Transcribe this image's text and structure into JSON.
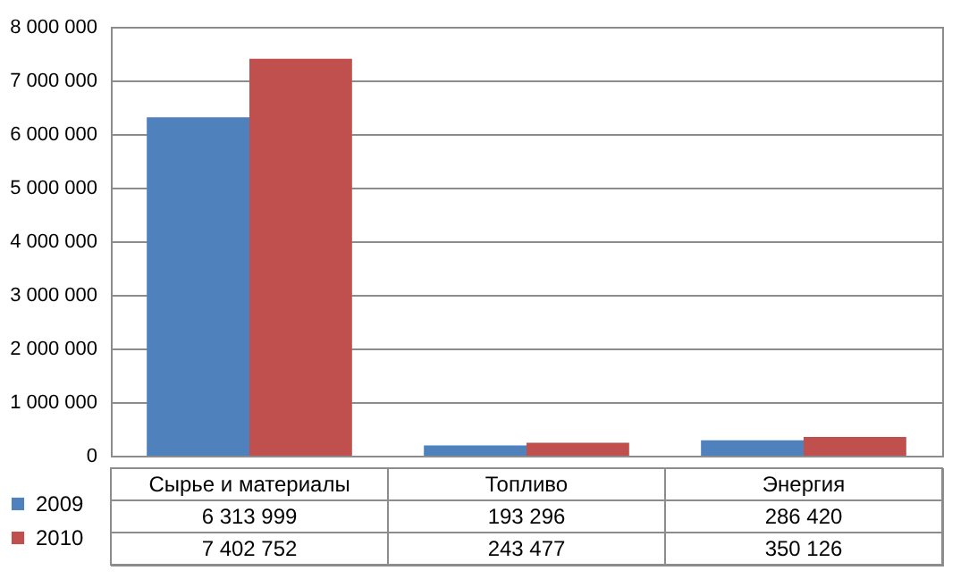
{
  "chart_data": {
    "type": "bar",
    "categories": [
      "Сырье и материалы",
      "Топливо",
      "Энергия"
    ],
    "series": [
      {
        "name": "2009",
        "color": "#4f81bd",
        "values": [
          6313999,
          193296,
          286420
        ],
        "value_labels": [
          "6 313 999",
          "193 296",
          "286 420"
        ]
      },
      {
        "name": "2010",
        "color": "#c0504d",
        "values": [
          7402752,
          243477,
          350126
        ],
        "value_labels": [
          "7 402 752",
          "243 477",
          "350 126"
        ]
      }
    ],
    "ylim": [
      0,
      8000000
    ],
    "yticks": [
      {
        "value": 0,
        "label": "0"
      },
      {
        "value": 1000000,
        "label": "1 000 000"
      },
      {
        "value": 2000000,
        "label": "2 000 000"
      },
      {
        "value": 3000000,
        "label": "3 000 000"
      },
      {
        "value": 4000000,
        "label": "4 000 000"
      },
      {
        "value": 5000000,
        "label": "5 000 000"
      },
      {
        "value": 6000000,
        "label": "6 000 000"
      },
      {
        "value": 7000000,
        "label": "7 000 000"
      },
      {
        "value": 8000000,
        "label": "8 000 000"
      }
    ],
    "grid": "y",
    "legend": "bottom left"
  }
}
